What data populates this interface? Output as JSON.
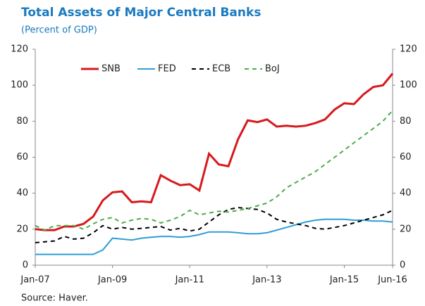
{
  "chart_data": {
    "type": "line",
    "title": "Total Assets of Major Central Banks",
    "subtitle": "(Percent of GDP)",
    "source": "Source: Haver.",
    "categories": [
      "Jan-07",
      null,
      null,
      null,
      null,
      null,
      null,
      null,
      "Jan-09",
      null,
      null,
      null,
      null,
      null,
      null,
      null,
      "Jan-11",
      null,
      null,
      null,
      null,
      null,
      null,
      null,
      "Jan-13",
      null,
      null,
      null,
      null,
      null,
      null,
      null,
      "Jan-15",
      null,
      null,
      null,
      null,
      "Jun-16"
    ],
    "series": [
      {
        "name": "SNB",
        "color": "#d7191c",
        "dashed": false,
        "values": [
          20,
          19.5,
          19.5,
          21.5,
          21.5,
          23,
          27,
          36,
          40.5,
          41,
          35,
          35.5,
          35,
          50,
          47,
          44.5,
          45,
          41.5,
          62,
          56,
          55,
          70,
          80.5,
          79.5,
          81,
          77,
          77.5,
          77,
          77.5,
          79,
          81,
          86.5,
          90,
          89.5,
          95,
          99,
          100,
          106.5
        ]
      },
      {
        "name": "FED",
        "color": "#2e9fd6",
        "dashed": false,
        "values": [
          6,
          6,
          6,
          6,
          6,
          6,
          6,
          8.5,
          15,
          14.5,
          14,
          15,
          15.5,
          16,
          16,
          15.5,
          16,
          17,
          18.5,
          18.5,
          18.5,
          18,
          17.5,
          17.5,
          18,
          19.5,
          21,
          22.5,
          24,
          25,
          25.5,
          25.5,
          25.5,
          25,
          25,
          24.5,
          24.5,
          24
        ]
      },
      {
        "name": "ECB",
        "color": "#000000",
        "dashed": true,
        "values": [
          12.5,
          13,
          13.5,
          16,
          14.5,
          15,
          18,
          22,
          20,
          21,
          20,
          20.5,
          21,
          21.5,
          19.5,
          20.5,
          19,
          20,
          24,
          28,
          31,
          32,
          31.5,
          31,
          29,
          25.5,
          24,
          23,
          22,
          20.5,
          20,
          21,
          22,
          23.5,
          25,
          26.5,
          28,
          30.5
        ]
      },
      {
        "name": "BoJ",
        "color": "#4cad4c",
        "dashed": true,
        "values": [
          22,
          19.5,
          22,
          22,
          22,
          20,
          23,
          25.5,
          26.5,
          23.5,
          25,
          26,
          25.5,
          23.5,
          25,
          27,
          30.5,
          28,
          29,
          30,
          29.5,
          30.5,
          31.5,
          33,
          34.5,
          38,
          43,
          46,
          49,
          52,
          56,
          60,
          64,
          68,
          72,
          76,
          80,
          86
        ]
      }
    ],
    "ylim": [
      0,
      120
    ],
    "yticks": [
      0,
      20,
      40,
      60,
      80,
      100,
      120
    ],
    "y2lim": [
      0,
      120
    ],
    "y2ticks": [
      0,
      20,
      40,
      60,
      80,
      100,
      120
    ],
    "grid": false,
    "legend": "top"
  }
}
